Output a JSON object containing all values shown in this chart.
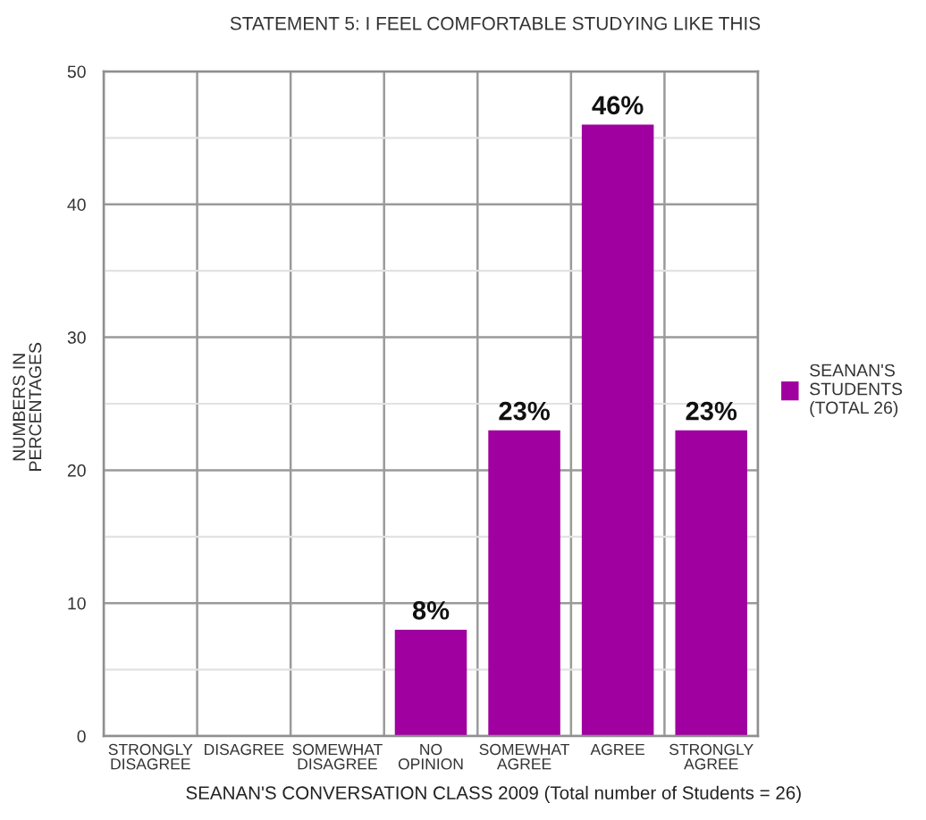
{
  "chart_data": {
    "type": "bar",
    "title": "STATEMENT 5: I FEEL COMFORTABLE STUDYING LIKE THIS",
    "xlabel": "SEANAN'S CONVERSATION CLASS 2009 (Total number of Students = 26)",
    "ylabel": "NUMBERS IN\nPERCENTAGES",
    "categories": [
      "STRONGLY\nDISAGREE",
      "DISAGREE",
      "SOMEWHAT\nDISAGREE",
      "NO\nOPINION",
      "SOMEWHAT\nAGREE",
      "AGREE",
      "STRONGLY\nAGREE"
    ],
    "series": [
      {
        "name": "SEANAN'S\nSTUDENTS\n(TOTAL 26)",
        "color": "#a000a0",
        "values": [
          0,
          0,
          0,
          8,
          23,
          46,
          23
        ],
        "value_labels": [
          null,
          null,
          null,
          "8%",
          "23%",
          "46%",
          "23%"
        ]
      }
    ],
    "ylim": [
      0,
      50
    ],
    "yticks": [
      0,
      {
        "value": 5,
        "label": null
      },
      10,
      {
        "value": 15,
        "label": null
      },
      20,
      {
        "value": 25,
        "label": null
      },
      30,
      {
        "value": 35,
        "label": null
      },
      40,
      {
        "value": 45,
        "label": null
      },
      50
    ],
    "grid": true,
    "legend": "right"
  }
}
